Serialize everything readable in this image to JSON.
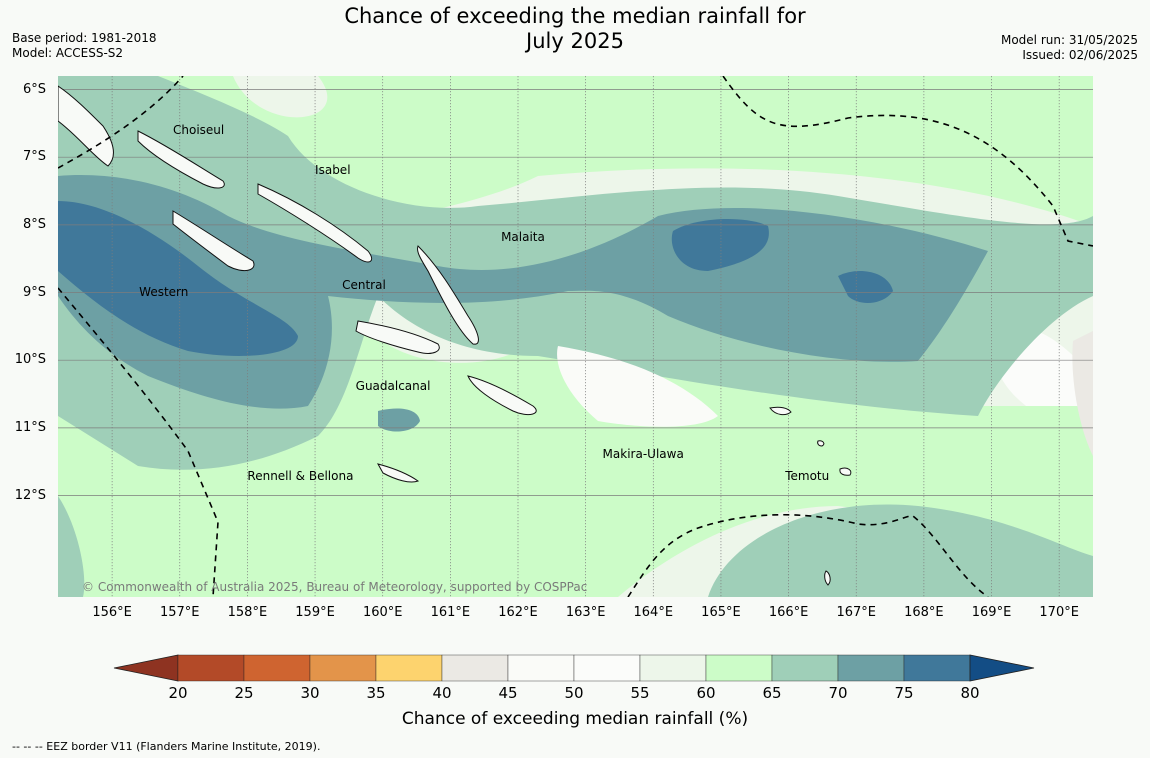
{
  "title": {
    "line1": "Chance of exceeding the median rainfall for",
    "line2": "July 2025"
  },
  "meta_left": {
    "base_period": "Base period: 1981-2018",
    "model": "Model: ACCESS-S2"
  },
  "meta_right": {
    "model_run": "Model run: 31/05/2025",
    "issued": "Issued: 02/06/2025"
  },
  "map": {
    "lon_range": [
      155.2,
      170.5
    ],
    "lat_range": [
      -13.5,
      -5.8
    ],
    "lat_labels": [
      "6°S",
      "7°S",
      "8°S",
      "9°S",
      "10°S",
      "11°S",
      "12°S"
    ],
    "lon_labels": [
      "156°E",
      "157°E",
      "158°E",
      "159°E",
      "160°E",
      "161°E",
      "162°E",
      "163°E",
      "164°E",
      "165°E",
      "166°E",
      "167°E",
      "168°E",
      "169°E",
      "170°E"
    ],
    "provinces": [
      {
        "name": "Choiseul",
        "lon": 156.9,
        "lat": -6.62
      },
      {
        "name": "Isabel",
        "lon": 159.0,
        "lat": -7.2
      },
      {
        "name": "Malaita",
        "lon": 161.75,
        "lat": -8.2
      },
      {
        "name": "Central",
        "lon": 159.4,
        "lat": -8.9
      },
      {
        "name": "Western",
        "lon": 156.4,
        "lat": -9.0
      },
      {
        "name": "Guadalcanal",
        "lon": 159.6,
        "lat": -10.4
      },
      {
        "name": "Makira-Ulawa",
        "lon": 163.25,
        "lat": -11.4
      },
      {
        "name": "Rennell & Bellona",
        "lon": 158.0,
        "lat": -11.72
      },
      {
        "name": "Temotu",
        "lon": 165.95,
        "lat": -11.72
      }
    ],
    "copyright": "© Commonwealth of Australia 2025, Bureau of Meteorology, supported by COSPPac"
  },
  "colorbar": {
    "ticks": [
      "20",
      "25",
      "30",
      "35",
      "40",
      "45",
      "50",
      "55",
      "60",
      "65",
      "70",
      "75",
      "80"
    ],
    "colors": [
      "#b34a28",
      "#cf6430",
      "#e3944a",
      "#fdd36e",
      "#ebe9e4",
      "#fafbf8",
      "#fbfcfa",
      "#edf6ea",
      "#ccfcc8",
      "#9fcfb8",
      "#6da0a4",
      "#40789a"
    ],
    "under_color": "#8e3321",
    "over_color": "#134d85",
    "label": "Chance of exceeding median rainfall (%)"
  },
  "footnote": "--  --  -- EEZ border V11 (Flanders Marine Institute, 2019)."
}
